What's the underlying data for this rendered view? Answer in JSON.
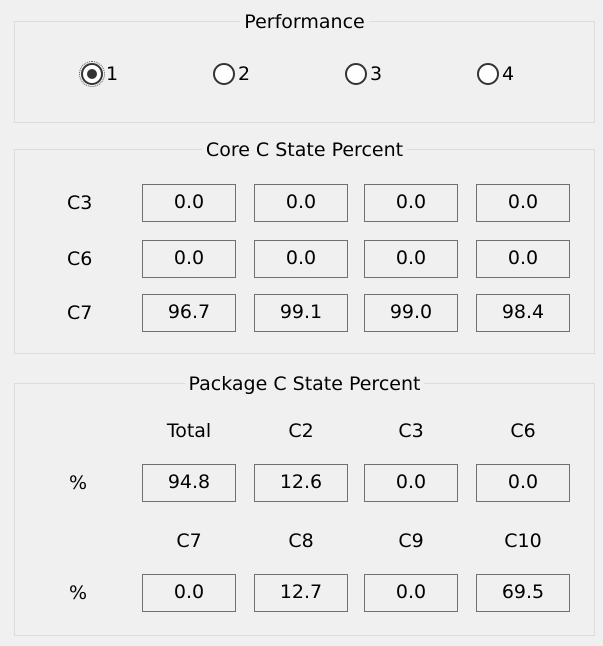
{
  "performance": {
    "title": "Performance",
    "options": [
      "1",
      "2",
      "3",
      "4"
    ],
    "selected": "1"
  },
  "core": {
    "title": "Core C State Percent",
    "rows": [
      {
        "label": "C3",
        "values": [
          "0.0",
          "0.0",
          "0.0",
          "0.0"
        ]
      },
      {
        "label": "C6",
        "values": [
          "0.0",
          "0.0",
          "0.0",
          "0.0"
        ]
      },
      {
        "label": "C7",
        "values": [
          "96.7",
          "99.1",
          "99.0",
          "98.4"
        ]
      }
    ]
  },
  "package": {
    "title": "Package C State Percent",
    "row_label": "%",
    "headers1": [
      "Total",
      "C2",
      "C3",
      "C6"
    ],
    "values1": [
      "94.8",
      "12.6",
      "0.0",
      "0.0"
    ],
    "headers2": [
      "C7",
      "C8",
      "C9",
      "C10"
    ],
    "values2": [
      "0.0",
      "12.7",
      "0.0",
      "69.5"
    ]
  }
}
